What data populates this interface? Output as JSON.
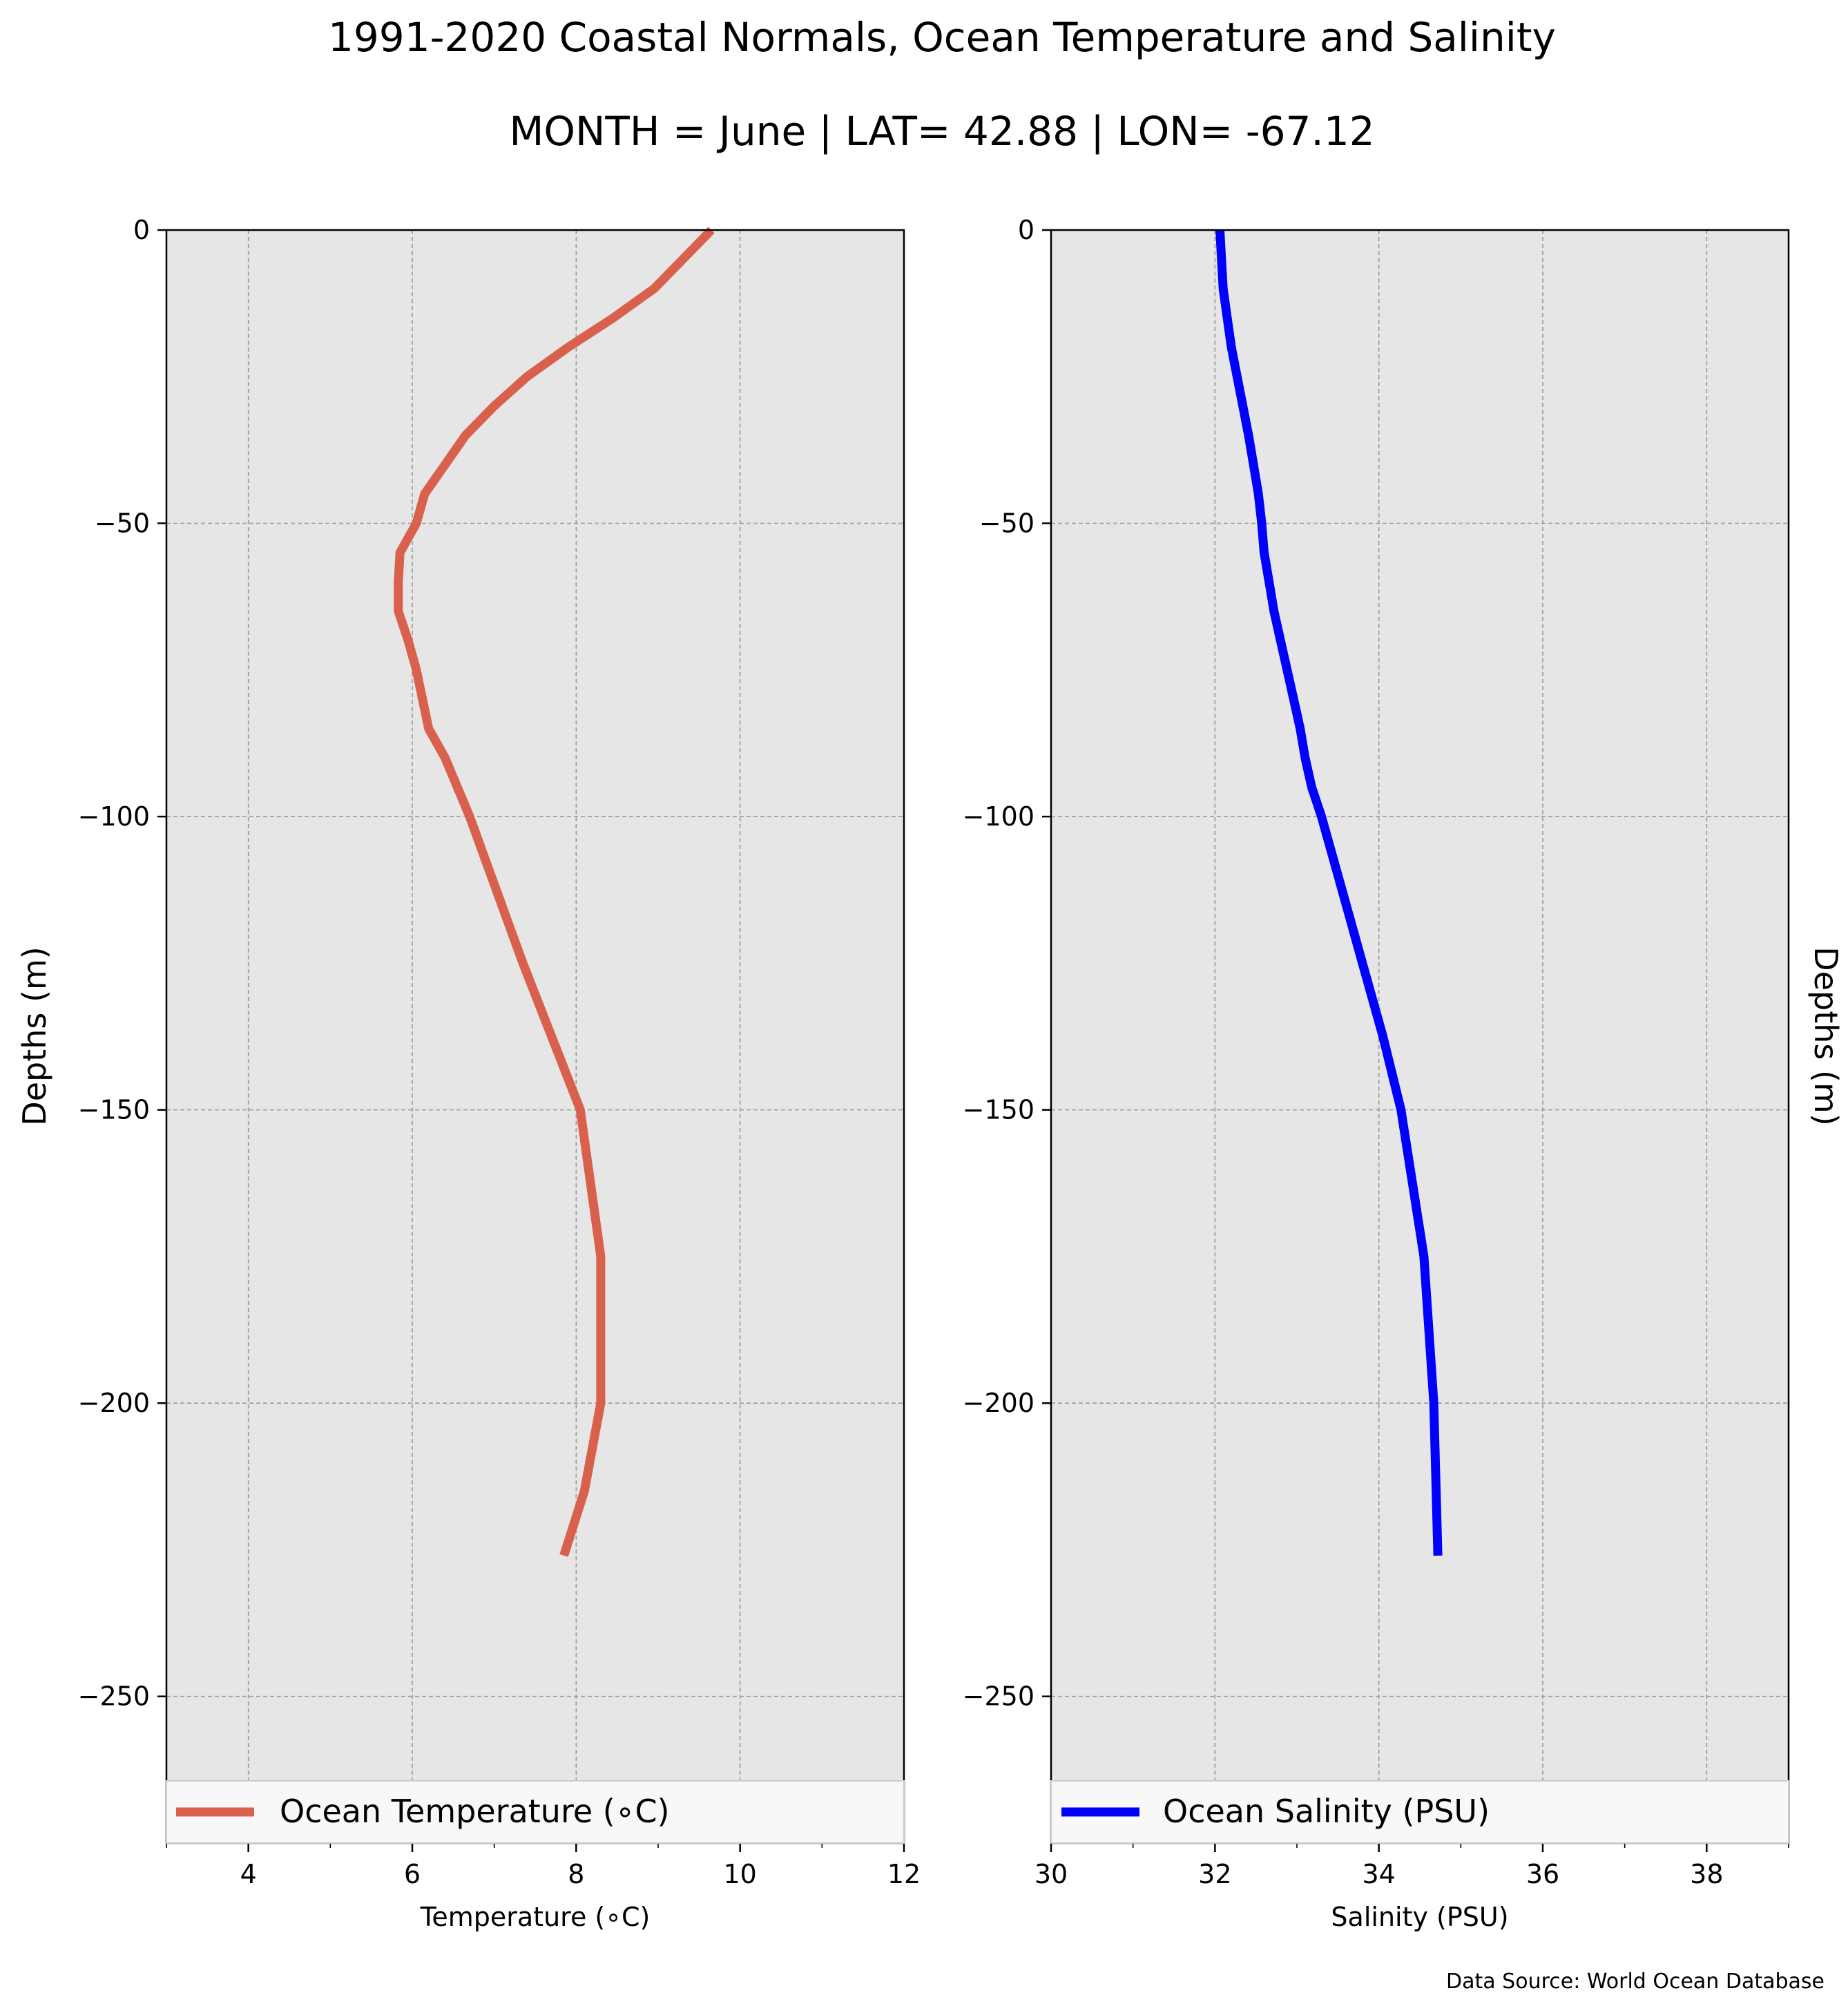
{
  "figure": {
    "title": "1991-2020 Coastal Normals, Ocean Temperature and Salinity",
    "subtitle": "MONTH = June | LAT= 42.88 | LON= -67.12",
    "source": "Data Source: World Ocean Database",
    "background": "#ffffff",
    "panel_bg": "#e6e6e6"
  },
  "chart_data": [
    {
      "type": "line",
      "xlabel": "Temperature ($^\\circ$C)",
      "xlabel_display": "Temperature (∘C)",
      "ylabel": "Depths (m)",
      "xlim": [
        3,
        12
      ],
      "ylim": [
        -275,
        0
      ],
      "xticks": [
        4,
        6,
        8,
        10,
        12
      ],
      "yticks": [
        0,
        -50,
        -100,
        -150,
        -200,
        -250
      ],
      "ytick_labels": [
        "0",
        "−50",
        "−100",
        "−150",
        "−200",
        "−250"
      ],
      "grid": true,
      "legend_position": "bottom",
      "series": [
        {
          "name": "Ocean Temperature (∘C)",
          "color": "#d9604c",
          "x": [
            9.65,
            9.3,
            8.95,
            8.45,
            7.9,
            7.4,
            7.0,
            6.65,
            6.4,
            6.15,
            6.05,
            5.85,
            5.83,
            5.83,
            5.95,
            6.05,
            6.2,
            6.4,
            6.7,
            7.35,
            8.05,
            8.3,
            8.3,
            8.1,
            7.85
          ],
          "y": [
            0,
            -5,
            -10,
            -15,
            -20,
            -25,
            -30,
            -35,
            -40,
            -45,
            -50,
            -55,
            -60,
            -65,
            -70,
            -75,
            -85,
            -90,
            -100,
            -125,
            -150,
            -175,
            -200,
            -215,
            -226
          ]
        }
      ]
    },
    {
      "type": "line",
      "xlabel": "Salinity (PSU)",
      "ylabel": "Depths (m)",
      "xlim": [
        30,
        39
      ],
      "ylim": [
        -275,
        0
      ],
      "xticks": [
        30,
        32,
        34,
        36,
        38
      ],
      "yticks": [
        0,
        -50,
        -100,
        -150,
        -200,
        -250
      ],
      "ytick_labels": [
        "0",
        "−50",
        "−100",
        "−150",
        "−200",
        "−250"
      ],
      "grid": true,
      "legend_position": "bottom",
      "series": [
        {
          "name": "Ocean Salinity (PSU)",
          "color": "#0000ff",
          "x": [
            32.06,
            32.08,
            32.1,
            32.15,
            32.2,
            32.27,
            32.34,
            32.41,
            32.47,
            32.53,
            32.57,
            32.6,
            32.66,
            32.72,
            32.8,
            32.88,
            32.96,
            33.04,
            33.1,
            33.18,
            33.3,
            33.55,
            33.8,
            34.05,
            34.27,
            34.55,
            34.67,
            34.72
          ],
          "y": [
            0,
            -5,
            -10,
            -15,
            -20,
            -25,
            -30,
            -35,
            -40,
            -45,
            -50,
            -55,
            -60,
            -65,
            -70,
            -75,
            -80,
            -85,
            -90,
            -95,
            -100,
            -112.5,
            -125,
            -137.5,
            -150,
            -175,
            -200,
            -226
          ]
        }
      ]
    }
  ]
}
